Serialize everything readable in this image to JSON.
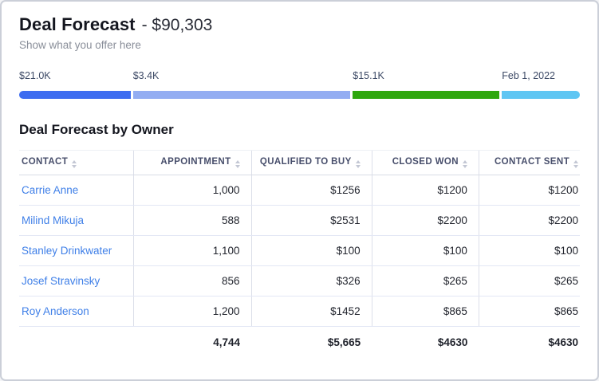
{
  "header": {
    "title": "Deal Forecast",
    "amount": "- $90,303",
    "subtitle": "Show what you offer here"
  },
  "progress": {
    "segments": [
      {
        "label": "$21.0K",
        "color": "#3c6cf0",
        "width_pct": 20.3
      },
      {
        "label": "$3.4K",
        "color": "#93adf2",
        "width_pct": 39.2
      },
      {
        "label": "$15.1K",
        "color": "#2fa70e",
        "width_pct": 26.6
      },
      {
        "label": "Feb 1, 2022",
        "color": "#5fc6f3",
        "width_pct": 13.9
      }
    ]
  },
  "section": {
    "title": "Deal Forecast by Owner"
  },
  "table": {
    "columns": [
      {
        "label": "Contact"
      },
      {
        "label": "Appointment"
      },
      {
        "label": "Qualified To Buy"
      },
      {
        "label": "Closed Won"
      },
      {
        "label": "Contact Sent"
      }
    ],
    "rows": [
      {
        "contact": "Carrie Anne",
        "appointment": "1,000",
        "qualified_to_buy": "$1256",
        "closed_won": "$1200",
        "contact_sent": "$1200"
      },
      {
        "contact": "Milind Mikuja",
        "appointment": "588",
        "qualified_to_buy": "$2531",
        "closed_won": "$2200",
        "contact_sent": "$2200"
      },
      {
        "contact": "Stanley Drinkwater",
        "appointment": "1,100",
        "qualified_to_buy": "$100",
        "closed_won": "$100",
        "contact_sent": "$100"
      },
      {
        "contact": "Josef Stravinsky",
        "appointment": "856",
        "qualified_to_buy": "$326",
        "closed_won": "$265",
        "contact_sent": "$265"
      },
      {
        "contact": "Roy Anderson",
        "appointment": "1,200",
        "qualified_to_buy": "$1452",
        "closed_won": "$865",
        "contact_sent": "$865"
      }
    ],
    "totals": {
      "appointment": "4,744",
      "qualified_to_buy": "$5,665",
      "closed_won": "$4630",
      "contact_sent": "$4630"
    }
  }
}
